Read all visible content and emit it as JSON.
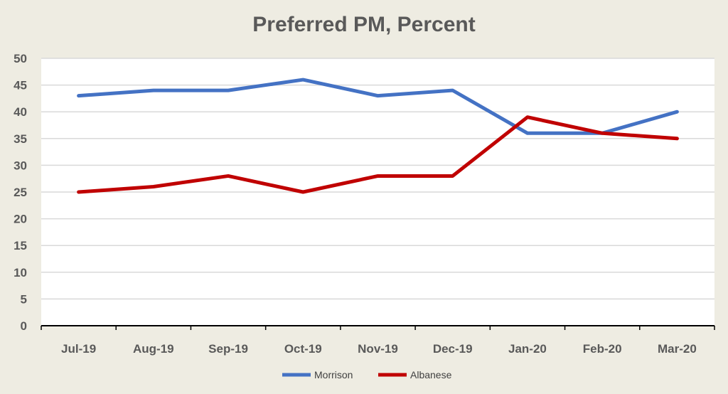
{
  "chart_data": {
    "type": "line",
    "title": "Preferred PM, Percent",
    "xlabel": "",
    "ylabel": "",
    "categories": [
      "Jul-19",
      "Aug-19",
      "Sep-19",
      "Oct-19",
      "Nov-19",
      "Dec-19",
      "Jan-20",
      "Feb-20",
      "Mar-20"
    ],
    "ylim": [
      0,
      50
    ],
    "yticks": [
      0,
      5,
      10,
      15,
      20,
      25,
      30,
      35,
      40,
      45,
      50
    ],
    "grid": true,
    "legend_position": "bottom",
    "series": [
      {
        "name": "Morrison",
        "color": "#4472c4",
        "values": [
          43,
          44,
          44,
          46,
          43,
          44,
          36,
          36,
          40
        ]
      },
      {
        "name": "Albanese",
        "color": "#c00000",
        "values": [
          25,
          26,
          28,
          25,
          28,
          28,
          39,
          36,
          35
        ]
      }
    ]
  }
}
